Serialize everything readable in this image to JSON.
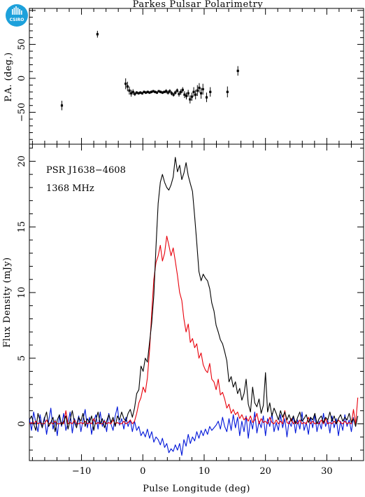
{
  "logo": {
    "text": "CSIRO",
    "color": "#1da1db"
  },
  "chart_data": [
    {
      "panel": "position-angle",
      "type": "scatter",
      "title": "Parkes Pulsar Polarimetry",
      "xlabel": "",
      "ylabel": "P.A. (deg.)",
      "xlim": [
        -18.5,
        36
      ],
      "ylim": [
        -97,
        103
      ],
      "yticks": [
        -50,
        0,
        50
      ],
      "grid": false,
      "points": [
        {
          "x": -13.2,
          "y": -40,
          "err": 7
        },
        {
          "x": -7.4,
          "y": 65,
          "err": 5
        },
        {
          "x": -2.8,
          "y": -8,
          "err": 8
        },
        {
          "x": -2.5,
          "y": -12,
          "err": 7
        },
        {
          "x": -2.2,
          "y": -18,
          "err": 6
        },
        {
          "x": -1.9,
          "y": -22,
          "err": 5
        },
        {
          "x": -1.6,
          "y": -20,
          "err": 4
        },
        {
          "x": -1.3,
          "y": -23,
          "err": 3
        },
        {
          "x": -1.0,
          "y": -21,
          "err": 2
        },
        {
          "x": -0.7,
          "y": -22,
          "err": 2
        },
        {
          "x": -0.4,
          "y": -21,
          "err": 2
        },
        {
          "x": -0.1,
          "y": -22,
          "err": 2
        },
        {
          "x": 0.2,
          "y": -20,
          "err": 2
        },
        {
          "x": 0.5,
          "y": -21,
          "err": 2
        },
        {
          "x": 0.8,
          "y": -20,
          "err": 2
        },
        {
          "x": 1.1,
          "y": -21,
          "err": 2
        },
        {
          "x": 1.4,
          "y": -20,
          "err": 2
        },
        {
          "x": 1.7,
          "y": -19,
          "err": 2
        },
        {
          "x": 2.0,
          "y": -20,
          "err": 2
        },
        {
          "x": 2.3,
          "y": -21,
          "err": 2
        },
        {
          "x": 2.6,
          "y": -19,
          "err": 2
        },
        {
          "x": 2.9,
          "y": -20,
          "err": 2
        },
        {
          "x": 3.2,
          "y": -21,
          "err": 2
        },
        {
          "x": 3.5,
          "y": -20,
          "err": 2
        },
        {
          "x": 3.8,
          "y": -19,
          "err": 3
        },
        {
          "x": 4.1,
          "y": -21,
          "err": 3
        },
        {
          "x": 4.4,
          "y": -19,
          "err": 3
        },
        {
          "x": 4.7,
          "y": -22,
          "err": 3
        },
        {
          "x": 5.0,
          "y": -24,
          "err": 3
        },
        {
          "x": 5.3,
          "y": -21,
          "err": 3
        },
        {
          "x": 5.6,
          "y": -18,
          "err": 3
        },
        {
          "x": 5.9,
          "y": -23,
          "err": 4
        },
        {
          "x": 6.2,
          "y": -20,
          "err": 4
        },
        {
          "x": 6.5,
          "y": -17,
          "err": 4
        },
        {
          "x": 6.8,
          "y": -24,
          "err": 5
        },
        {
          "x": 7.1,
          "y": -26,
          "err": 5
        },
        {
          "x": 7.4,
          "y": -22,
          "err": 5
        },
        {
          "x": 7.7,
          "y": -31,
          "err": 6
        },
        {
          "x": 8.0,
          "y": -27,
          "err": 6
        },
        {
          "x": 8.3,
          "y": -20,
          "err": 7
        },
        {
          "x": 8.6,
          "y": -24,
          "err": 7
        },
        {
          "x": 8.9,
          "y": -18,
          "err": 8
        },
        {
          "x": 9.2,
          "y": -14,
          "err": 7
        },
        {
          "x": 9.5,
          "y": -22,
          "err": 8
        },
        {
          "x": 9.8,
          "y": -16,
          "err": 8
        },
        {
          "x": 10.4,
          "y": -28,
          "err": 7
        },
        {
          "x": 11.0,
          "y": -20,
          "err": 7
        },
        {
          "x": 13.8,
          "y": -20,
          "err": 8
        },
        {
          "x": 15.5,
          "y": 11,
          "err": 7
        }
      ]
    },
    {
      "panel": "flux-profile",
      "type": "line",
      "title": "",
      "xlabel": "Pulse Longitude (deg)",
      "ylabel": "Flux Density (mJy)",
      "xlim": [
        -18.5,
        36
      ],
      "ylim": [
        -2.8,
        21.3
      ],
      "xticks": [
        -10,
        0,
        10,
        20,
        30
      ],
      "yticks": [
        0,
        5,
        10,
        15,
        20
      ],
      "grid": false,
      "annotations": [
        "PSR J1638−4608",
        "1368 MHz"
      ],
      "sample_step": 0.35,
      "x_start": -18.5,
      "series": [
        {
          "key": "total",
          "color": "#000000",
          "values": [
            0.3,
            0.6,
            0.0,
            -0.5,
            0.8,
            0.2,
            -0.3,
            0.4,
            0.9,
            -0.2,
            0.1,
            0.5,
            -0.6,
            0.3,
            0.7,
            -0.1,
            0.2,
            0.6,
            -0.4,
            0.3,
            1.0,
            0.1,
            -0.3,
            0.5,
            0.2,
            0.8,
            -0.2,
            0.4,
            0.1,
            0.6,
            -0.5,
            0.3,
            0.9,
            0.0,
            0.4,
            -0.3,
            0.2,
            0.7,
            0.1,
            0.5,
            -0.2,
            0.6,
            0.3,
            0.9,
            0.4,
            0.2,
            0.8,
            1.1,
            0.5,
            1.2,
            2.3,
            2.6,
            4.4,
            4.0,
            5.0,
            4.7,
            6.2,
            7.7,
            9.8,
            13.5,
            16.8,
            18.4,
            19.0,
            18.4,
            18.0,
            17.8,
            18.2,
            18.8,
            20.3,
            19.2,
            19.7,
            18.6,
            19.1,
            19.9,
            18.9,
            18.3,
            17.7,
            15.8,
            13.8,
            11.6,
            10.9,
            11.4,
            11.1,
            10.9,
            10.3,
            9.2,
            8.6,
            7.5,
            7.0,
            6.4,
            6.1,
            5.5,
            4.8,
            3.2,
            3.6,
            2.8,
            3.2,
            2.3,
            2.7,
            1.8,
            2.3,
            3.4,
            1.5,
            0.9,
            2.8,
            1.6,
            1.3,
            1.9,
            0.8,
            1.4,
            3.9,
            0.9,
            1.6,
            0.6,
            1.2,
            0.8,
            0.3,
            1.0,
            0.5,
            0.9,
            0.3,
            0.7,
            0.2,
            0.6,
            0.0,
            0.5,
            0.9,
            0.2,
            0.4,
            0.7,
            0.1,
            0.5,
            0.3,
            0.8,
            0.0,
            0.4,
            0.6,
            0.1,
            0.5,
            0.3,
            0.9,
            0.2,
            0.6,
            0.0,
            0.4,
            0.7,
            0.2,
            0.5,
            0.3,
            0.8,
            0.1,
            0.4,
            -0.2,
            0.6
          ]
        },
        {
          "key": "linear",
          "color": "#e8000b",
          "values": [
            0.0,
            0.1,
            0.0,
            0.2,
            0.0,
            0.1,
            0.0,
            0.0,
            0.3,
            0.0,
            0.1,
            0.0,
            0.2,
            0.0,
            0.0,
            0.1,
            0.0,
            1.0,
            0.0,
            0.1,
            0.0,
            0.3,
            0.0,
            0.0,
            0.1,
            0.0,
            0.2,
            0.0,
            0.1,
            0.0,
            0.4,
            0.0,
            0.1,
            0.0,
            0.0,
            0.2,
            0.0,
            0.1,
            0.0,
            0.3,
            0.0,
            0.1,
            0.0,
            0.0,
            0.2,
            0.0,
            0.1,
            0.3,
            0.0,
            0.2,
            0.8,
            1.6,
            2.0,
            2.8,
            2.4,
            3.5,
            5.6,
            8.5,
            11.0,
            12.3,
            12.8,
            13.6,
            12.4,
            13.0,
            14.3,
            13.6,
            12.8,
            13.4,
            12.4,
            11.3,
            10.0,
            9.4,
            8.0,
            7.0,
            7.6,
            6.2,
            6.5,
            5.8,
            6.1,
            5.0,
            5.4,
            4.5,
            4.1,
            3.9,
            4.6,
            3.4,
            3.2,
            2.6,
            3.4,
            2.2,
            2.4,
            1.9,
            1.2,
            1.5,
            0.8,
            1.1,
            0.7,
            0.9,
            0.4,
            0.7,
            0.3,
            0.5,
            0.2,
            0.6,
            0.1,
            0.3,
            0.8,
            0.0,
            0.4,
            0.1,
            0.2,
            0.0,
            0.5,
            0.1,
            0.0,
            0.3,
            0.0,
            0.2,
            0.0,
            1.0,
            0.1,
            0.0,
            0.4,
            0.0,
            0.2,
            0.0,
            0.3,
            0.0,
            0.1,
            0.0,
            0.5,
            0.0,
            0.2,
            0.0,
            0.1,
            0.0,
            0.3,
            0.0,
            0.4,
            0.0,
            0.1,
            0.0,
            0.2,
            0.0,
            0.3,
            0.1,
            0.0,
            0.2,
            0.0,
            0.1,
            0.0,
            1.1,
            0.0,
            2.0
          ]
        },
        {
          "key": "circular",
          "color": "#0016d9",
          "values": [
            0.4,
            -0.5,
            0.9,
            0.1,
            -0.6,
            0.7,
            -0.3,
            0.5,
            -0.8,
            0.2,
            1.2,
            -0.4,
            0.3,
            -0.9,
            0.6,
            -0.2,
            0.8,
            -0.5,
            0.1,
            0.9,
            -0.7,
            0.4,
            -0.1,
            0.6,
            -0.6,
            0.3,
            1.1,
            -0.3,
            0.5,
            -0.8,
            0.2,
            0.7,
            -0.4,
            0.9,
            -0.2,
            0.3,
            -0.6,
            0.8,
            0.0,
            -0.5,
            0.6,
            1.3,
            -0.1,
            0.4,
            -0.4,
            0.5,
            -0.2,
            0.3,
            -0.6,
            0.2,
            -0.5,
            -0.2,
            -0.9,
            -0.6,
            -1.0,
            -0.4,
            -1.1,
            -0.6,
            -1.4,
            -1.0,
            -1.2,
            -1.6,
            -1.1,
            -1.8,
            -1.5,
            -2.2,
            -1.9,
            -2.1,
            -1.6,
            -2.0,
            -1.5,
            -2.4,
            -1.2,
            -1.7,
            -0.8,
            -1.5,
            -1.0,
            -1.3,
            -0.6,
            -1.1,
            -0.5,
            -0.9,
            -0.4,
            -0.8,
            -0.2,
            -0.5,
            -0.3,
            -0.1,
            0.2,
            -0.4,
            0.5,
            -0.2,
            -0.6,
            0.4,
            -0.5,
            0.7,
            -0.3,
            0.5,
            -0.9,
            0.2,
            -0.6,
            0.6,
            -1.1,
            0.3,
            -0.4,
            0.9,
            -0.7,
            0.2,
            -0.3,
            0.6,
            -0.9,
            0.4,
            -0.2,
            0.8,
            -0.6,
            0.1,
            -0.5,
            0.7,
            -0.3,
            0.4,
            -1.0,
            0.2,
            -0.2,
            0.6,
            -0.7,
            0.3,
            -0.4,
            0.9,
            -0.5,
            0.1,
            -0.8,
            0.5,
            -0.3,
            0.7,
            -0.6,
            0.2,
            -0.4,
            0.8,
            -0.2,
            0.3,
            -0.7,
            0.6,
            -0.3,
            0.4,
            -0.9,
            0.2,
            -0.5,
            0.7,
            -0.2,
            0.3,
            -0.6,
            0.5
          ]
        }
      ]
    }
  ]
}
